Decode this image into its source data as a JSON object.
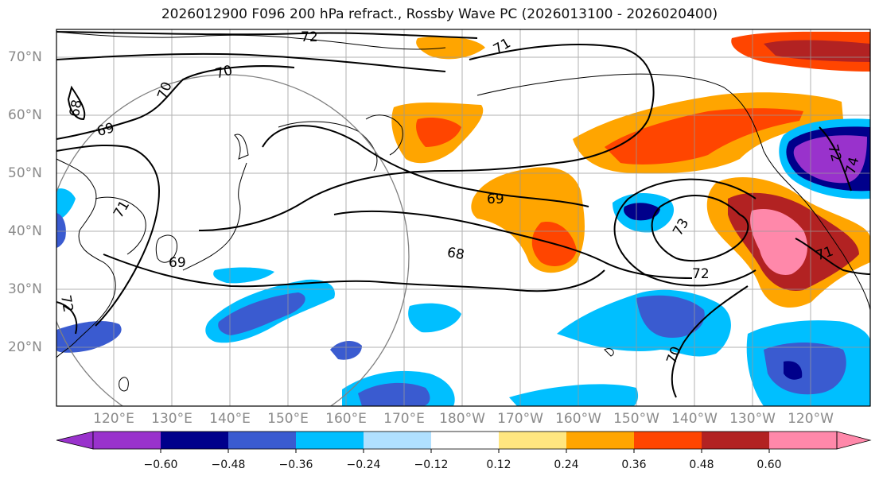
{
  "title": "2026012900 F096 200 hPa refract., Rossby Wave PC (2026013100 - 2026020400)",
  "latitude_labels": [
    "70°N",
    "60°N",
    "50°N",
    "40°N",
    "30°N",
    "20°N"
  ],
  "longitude_labels": [
    "120°E",
    "130°E",
    "140°E",
    "150°E",
    "160°E",
    "170°E",
    "180°W",
    "170°W",
    "160°W",
    "150°W",
    "140°W",
    "130°W",
    "120°W"
  ],
  "colorbar": {
    "ticks": [
      "−0.60",
      "−0.48",
      "−0.36",
      "−0.24",
      "−0.12",
      "0.12",
      "0.24",
      "0.36",
      "0.48",
      "0.60"
    ],
    "colors": [
      "#9932cc",
      "#00008b",
      "#3a5bd0",
      "#00bfff",
      "#b0e0ff",
      "#ffffff",
      "#ffe680",
      "#ffa500",
      "#ff4500",
      "#b22222",
      "#ff88aa"
    ]
  },
  "contour_labels": [
    "72",
    "71",
    "70",
    "70",
    "69",
    "68",
    "71",
    "72",
    "69",
    "68",
    "69",
    "73",
    "72",
    "70",
    "72",
    "74",
    "71"
  ]
}
